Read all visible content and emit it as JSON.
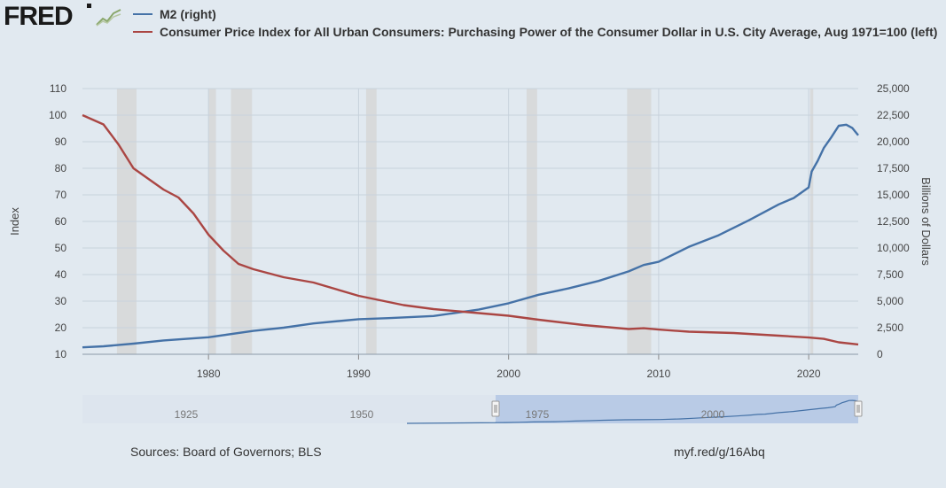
{
  "brand": {
    "logo_text": "FRED"
  },
  "legend": [
    {
      "label": "M2 (right)",
      "color": "#4572a7"
    },
    {
      "label": "Consumer Price Index for All Urban Consumers: Purchasing Power of the Consumer Dollar in U.S. City Average, Aug 1971=100 (left)",
      "color": "#aa4643"
    }
  ],
  "navigator": {
    "tick_labels": [
      "1925",
      "1950",
      "1975",
      "2000"
    ]
  },
  "footer": {
    "sources": "Sources: Board of Governors; BLS",
    "short_url": "myf.red/g/16Abq"
  },
  "chart_data": {
    "type": "line",
    "x_range": [
      1971.6,
      2023.3
    ],
    "x_ticks": [
      1980,
      1990,
      2000,
      2010,
      2020
    ],
    "y_left": {
      "label": "Index",
      "range": [
        10,
        110
      ],
      "ticks": [
        10,
        20,
        30,
        40,
        50,
        60,
        70,
        80,
        90,
        100,
        110
      ]
    },
    "y_right": {
      "label": "Billions of Dollars",
      "range": [
        0,
        25000
      ],
      "ticks": [
        0,
        2500,
        5000,
        7500,
        10000,
        12500,
        15000,
        17500,
        20000,
        22500,
        25000
      ],
      "tick_labels": [
        "0",
        "2,500",
        "5,000",
        "7,500",
        "10,000",
        "12,500",
        "15,000",
        "17,500",
        "20,000",
        "22,500",
        "25,000"
      ]
    },
    "recessions": [
      [
        1973.9,
        1975.2
      ],
      [
        1980.0,
        1980.5
      ],
      [
        1981.5,
        1982.9
      ],
      [
        1990.5,
        1991.2
      ],
      [
        2001.2,
        2001.9
      ],
      [
        2007.9,
        2009.5
      ],
      [
        2020.1,
        2020.3
      ]
    ],
    "grid": true,
    "legend_position": "top",
    "series": [
      {
        "name": "M2 (right)",
        "axis": "right",
        "color": "#4572a7",
        "x": [
          1971.6,
          1973,
          1975,
          1977,
          1980,
          1983,
          1985,
          1987,
          1990,
          1992,
          1995,
          1998,
          2000,
          2002,
          2004,
          2006,
          2008,
          2009,
          2010,
          2012,
          2014,
          2016,
          2018,
          2019,
          2020.0,
          2020.2,
          2020.6,
          2021,
          2021.5,
          2022.0,
          2022.5,
          2022.9,
          2023.3
        ],
        "values": [
          650,
          750,
          1000,
          1300,
          1600,
          2200,
          2500,
          2900,
          3300,
          3400,
          3600,
          4200,
          4800,
          5600,
          6200,
          6900,
          7800,
          8400,
          8700,
          10100,
          11200,
          12600,
          14100,
          14700,
          15700,
          17200,
          18200,
          19400,
          20400,
          21500,
          21600,
          21300,
          20600
        ]
      },
      {
        "name": "Consumer Price Index for All Urban Consumers: Purchasing Power of the Consumer Dollar in U.S. City Average, Aug 1971=100 (left)",
        "axis": "left",
        "color": "#aa4643",
        "x": [
          1971.6,
          1973,
          1974,
          1975,
          1977,
          1978,
          1979,
          1980,
          1981,
          1982,
          1983,
          1985,
          1987,
          1990,
          1993,
          1995,
          1998,
          2000,
          2002,
          2005,
          2008,
          2009,
          2010,
          2012,
          2015,
          2018,
          2020,
          2021,
          2022,
          2023.3
        ],
        "values": [
          100,
          96.5,
          89,
          80,
          72,
          69,
          63,
          55,
          49,
          44,
          42,
          39,
          37,
          32,
          28.5,
          27,
          25.5,
          24.5,
          23,
          21,
          19.5,
          19.8,
          19.3,
          18.5,
          18,
          17,
          16.3,
          15.8,
          14.5,
          13.7
        ]
      }
    ]
  }
}
